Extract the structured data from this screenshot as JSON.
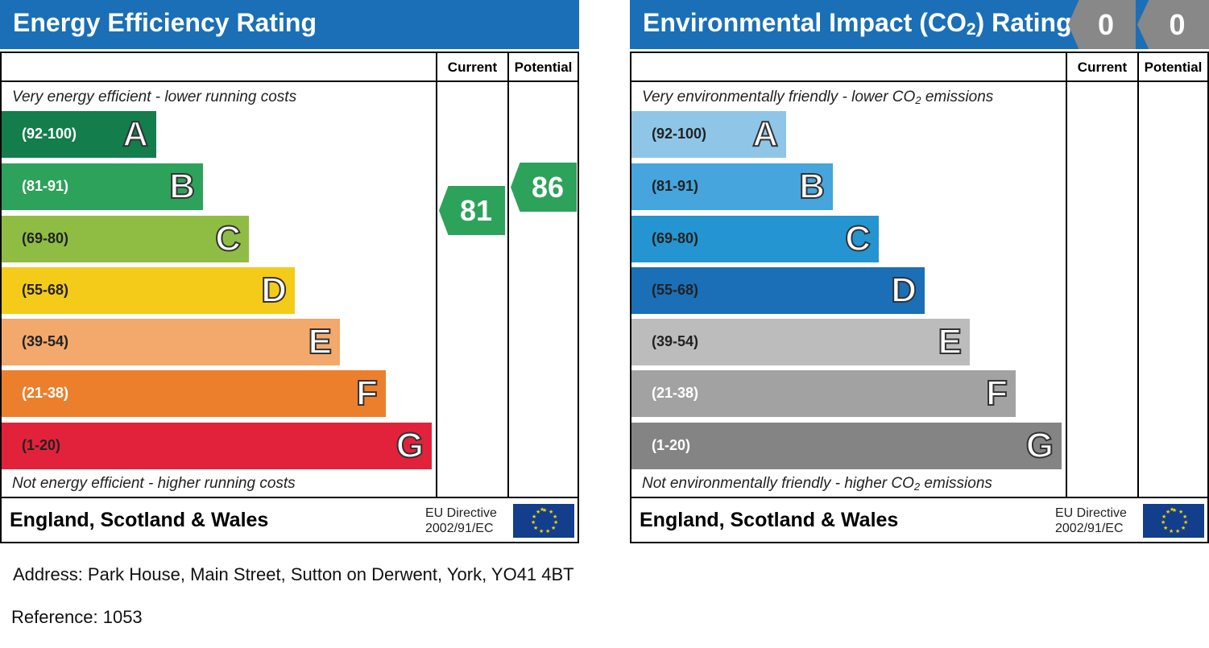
{
  "energy_efficiency": {
    "title": "Energy Efficiency Rating",
    "col_current": "Current",
    "col_potential": "Potential",
    "note_top": "Very energy efficient - lower running costs",
    "note_bottom": "Not energy efficient - higher running costs",
    "country": "England, Scotland & Wales",
    "eu_line1": "EU Directive",
    "eu_line2": "2002/91/EC",
    "current_value": "81",
    "potential_value": "86",
    "current_color": "#2da25b",
    "potential_color": "#2da25b"
  },
  "environmental_impact": {
    "title_prefix": "Environmental Impact (CO",
    "title_sub": "2",
    "title_suffix": ") Rating",
    "col_current": "Current",
    "col_potential": "Potential",
    "note_top_prefix": "Very environmentally friendly - lower CO",
    "note_top_sub": "2",
    "note_top_suffix": " emissions",
    "note_bottom_prefix": "Not environmentally friendly - higher CO",
    "note_bottom_sub": "2",
    "note_bottom_suffix": " emissions",
    "country": "England, Scotland & Wales",
    "eu_line1": "EU Directive",
    "eu_line2": "2002/91/EC",
    "current_value": "0",
    "potential_value": "0",
    "tag_color": "#888888"
  },
  "chart_data": [
    {
      "type": "bar",
      "title": "Energy Efficiency Rating",
      "categories": [
        "A",
        "B",
        "C",
        "D",
        "E",
        "F",
        "G"
      ],
      "ranges": [
        "(92-100)",
        "(81-91)",
        "(69-80)",
        "(55-68)",
        "(39-54)",
        "(21-38)",
        "(1-20)"
      ],
      "colors": [
        "#137d4c",
        "#2da25b",
        "#8fbd44",
        "#f5cb19",
        "#f2a96b",
        "#ec7f2c",
        "#e2223a"
      ],
      "current": 81,
      "potential": 86
    },
    {
      "type": "bar",
      "title": "Environmental Impact (CO2) Rating",
      "categories": [
        "A",
        "B",
        "C",
        "D",
        "E",
        "F",
        "G"
      ],
      "ranges": [
        "(92-100)",
        "(81-91)",
        "(69-80)",
        "(55-68)",
        "(39-54)",
        "(21-38)",
        "(1-20)"
      ],
      "colors": [
        "#8fc6e8",
        "#45a5dc",
        "#2595d1",
        "#1a6fb7",
        "#bcbcbc",
        "#a2a2a2",
        "#848484"
      ],
      "current": 0,
      "potential": 0
    }
  ],
  "footer": {
    "address": "Address: Park House, Main Street, Sutton on Derwent, York, YO41 4BT",
    "reference": "Reference: 1053"
  }
}
